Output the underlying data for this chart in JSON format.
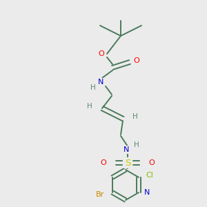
{
  "background_color": "#ebebeb",
  "bond_color": "#4a7a5a",
  "atom_colors": {
    "O": "#ff0000",
    "N": "#0000cc",
    "S": "#cccc00",
    "Cl": "#7fbf00",
    "Br": "#cc8800",
    "H": "#5a8a6a",
    "C": "#4a7a5a"
  }
}
